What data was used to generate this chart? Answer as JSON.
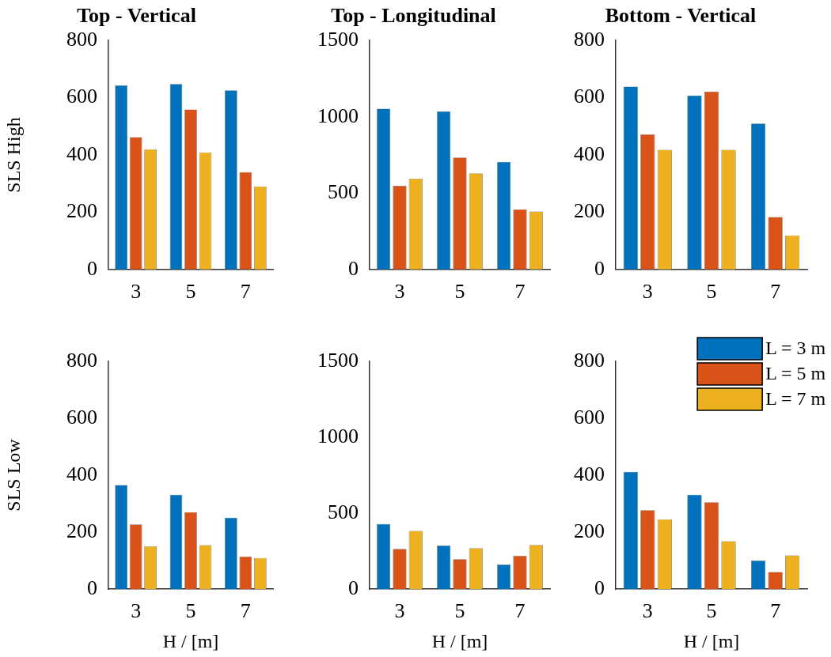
{
  "chart_data": [
    {
      "type": "bar",
      "title": "Top - Vertical",
      "ylabel": "SLS High",
      "categories": [
        "3",
        "5",
        "7"
      ],
      "series": [
        {
          "color": "#0072bd",
          "values": [
            643,
            648,
            626
          ]
        },
        {
          "color": "#d95319",
          "values": [
            462,
            559,
            340
          ]
        },
        {
          "color": "#edb120",
          "values": [
            420,
            409,
            290
          ]
        }
      ],
      "ylim": [
        0,
        800
      ],
      "yticks": [
        0,
        200,
        400,
        600,
        800
      ]
    },
    {
      "type": "bar",
      "title": "Top - Longitudinal",
      "categories": [
        "3",
        "5",
        "7"
      ],
      "series": [
        {
          "color": "#0072bd",
          "values": [
            1053,
            1036,
            705
          ]
        },
        {
          "color": "#d95319",
          "values": [
            548,
            733,
            394
          ]
        },
        {
          "color": "#edb120",
          "values": [
            594,
            630,
            380
          ]
        }
      ],
      "ylim": [
        0,
        1500
      ],
      "yticks": [
        0,
        500,
        1000,
        1500
      ]
    },
    {
      "type": "bar",
      "title": "Bottom - Vertical",
      "categories": [
        "3",
        "5",
        "7"
      ],
      "series": [
        {
          "color": "#0072bd",
          "values": [
            639,
            608,
            510
          ]
        },
        {
          "color": "#d95319",
          "values": [
            472,
            622,
            183
          ]
        },
        {
          "color": "#edb120",
          "values": [
            418,
            418,
            119
          ]
        }
      ],
      "ylim": [
        0,
        800
      ],
      "yticks": [
        0,
        200,
        400,
        600,
        800
      ]
    },
    {
      "type": "bar",
      "ylabel": "SLS Low",
      "xlabel": "H / [m]",
      "categories": [
        "3",
        "5",
        "7"
      ],
      "series": [
        {
          "color": "#0072bd",
          "values": [
            365,
            331,
            251
          ]
        },
        {
          "color": "#d95319",
          "values": [
            227,
            270,
            114
          ]
        },
        {
          "color": "#edb120",
          "values": [
            150,
            154,
            109
          ]
        }
      ],
      "ylim": [
        0,
        800
      ],
      "yticks": [
        0,
        200,
        400,
        600,
        800
      ]
    },
    {
      "type": "bar",
      "xlabel": "H / [m]",
      "categories": [
        "3",
        "5",
        "7"
      ],
      "series": [
        {
          "color": "#0072bd",
          "values": [
            429,
            286,
            162
          ]
        },
        {
          "color": "#d95319",
          "values": [
            264,
            197,
            219
          ]
        },
        {
          "color": "#edb120",
          "values": [
            383,
            269,
            290
          ]
        }
      ],
      "ylim": [
        0,
        1500
      ],
      "yticks": [
        0,
        500,
        1000,
        1500
      ]
    },
    {
      "type": "bar",
      "xlabel": "H / [m]",
      "categories": [
        "3",
        "5",
        "7"
      ],
      "series": [
        {
          "name": "L = 3 m",
          "color": "#0072bd",
          "values": [
            412,
            331,
            100
          ]
        },
        {
          "name": "L = 5 m",
          "color": "#d95319",
          "values": [
            277,
            305,
            60
          ]
        },
        {
          "name": "L = 7 m",
          "color": "#edb120",
          "values": [
            245,
            168,
            118
          ]
        }
      ],
      "ylim": [
        0,
        800
      ],
      "yticks": [
        0,
        200,
        400,
        600,
        800
      ],
      "legend": "top right"
    }
  ]
}
